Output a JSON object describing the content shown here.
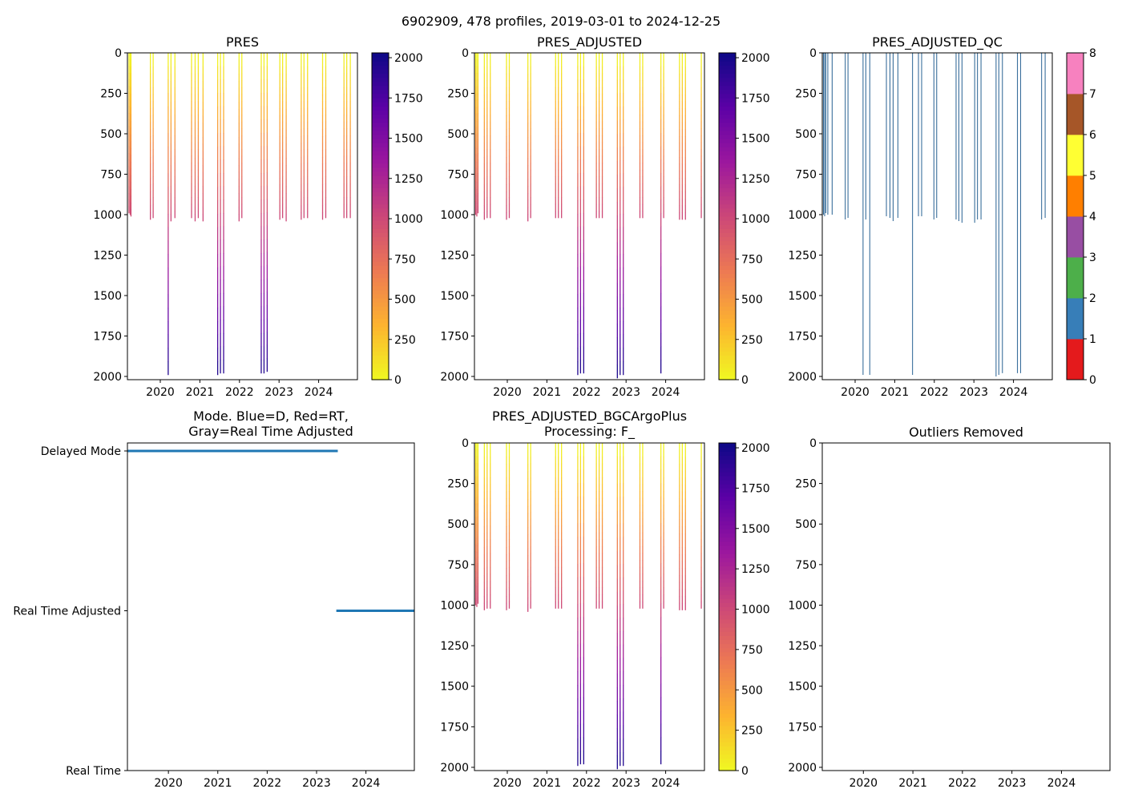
{
  "figure": {
    "suptitle": "6902909, 478 profiles, 2019-03-01 to 2024-12-25"
  },
  "colors": {
    "plasma": [
      "#f0f921",
      "#fdb42f",
      "#ed7953",
      "#cc4778",
      "#9c179e",
      "#5c01a6",
      "#0d0887"
    ],
    "mode_line": "#1f77b4",
    "qc_line": "#3a6f9c",
    "qc_palette": [
      "#e41a1c",
      "#377eb8",
      "#4daf4a",
      "#984ea3",
      "#ff7f00",
      "#ffff33",
      "#a65628",
      "#f781bf",
      "#999999"
    ]
  },
  "chart_data": [
    {
      "id": "pres",
      "type": "heatmap",
      "title": "PRES",
      "xlim": [
        2019.17,
        2024.98
      ],
      "ylim": [
        2020,
        0
      ],
      "xticks": [
        "2020",
        "2021",
        "2022",
        "2023",
        "2024"
      ],
      "yticks": [
        "0",
        "250",
        "500",
        "750",
        "1000",
        "1250",
        "1500",
        "1750",
        "2000"
      ],
      "colorbar": {
        "min": 0,
        "max": 2030,
        "ticks": [
          "0",
          "250",
          "500",
          "750",
          "1000",
          "1250",
          "1500",
          "1750",
          "2000"
        ]
      },
      "profiles": [
        {
          "t": 2019.21,
          "depth": 990
        },
        {
          "t": 2019.24,
          "depth": 1000
        },
        {
          "t": 2019.26,
          "depth": 1010
        },
        {
          "t": 2019.75,
          "depth": 1030
        },
        {
          "t": 2019.82,
          "depth": 1020
        },
        {
          "t": 2020.2,
          "depth": 1990
        },
        {
          "t": 2020.27,
          "depth": 1040
        },
        {
          "t": 2020.37,
          "depth": 1020
        },
        {
          "t": 2020.79,
          "depth": 1020
        },
        {
          "t": 2020.88,
          "depth": 1040
        },
        {
          "t": 2020.96,
          "depth": 1020
        },
        {
          "t": 2021.08,
          "depth": 1040
        },
        {
          "t": 2021.45,
          "depth": 1990
        },
        {
          "t": 2021.52,
          "depth": 1980
        },
        {
          "t": 2021.6,
          "depth": 1980
        },
        {
          "t": 2021.99,
          "depth": 1040
        },
        {
          "t": 2022.06,
          "depth": 1020
        },
        {
          "t": 2022.55,
          "depth": 1980
        },
        {
          "t": 2022.62,
          "depth": 1980
        },
        {
          "t": 2022.7,
          "depth": 1970
        },
        {
          "t": 2023.02,
          "depth": 1030
        },
        {
          "t": 2023.09,
          "depth": 1020
        },
        {
          "t": 2023.18,
          "depth": 1040
        },
        {
          "t": 2023.56,
          "depth": 1030
        },
        {
          "t": 2023.63,
          "depth": 1020
        },
        {
          "t": 2023.72,
          "depth": 1020
        },
        {
          "t": 2024.1,
          "depth": 1030
        },
        {
          "t": 2024.18,
          "depth": 1020
        },
        {
          "t": 2024.64,
          "depth": 1020
        },
        {
          "t": 2024.71,
          "depth": 1020
        },
        {
          "t": 2024.8,
          "depth": 1020
        }
      ]
    },
    {
      "id": "pres_adj",
      "type": "heatmap",
      "title": "PRES_ADJUSTED",
      "xlim": [
        2019.17,
        2024.98
      ],
      "ylim": [
        2020,
        0
      ],
      "xticks": [
        "2020",
        "2021",
        "2022",
        "2023",
        "2024"
      ],
      "yticks": [
        "0",
        "250",
        "500",
        "750",
        "1000",
        "1250",
        "1500",
        "1750",
        "2000"
      ],
      "colorbar": {
        "min": 0,
        "max": 2030,
        "ticks": [
          "0",
          "250",
          "500",
          "750",
          "1000",
          "1250",
          "1500",
          "1750",
          "2000"
        ]
      },
      "profiles": [
        {
          "t": 2019.2,
          "depth": 1000
        },
        {
          "t": 2019.23,
          "depth": 1010
        },
        {
          "t": 2019.26,
          "depth": 990
        },
        {
          "t": 2019.42,
          "depth": 1030
        },
        {
          "t": 2019.49,
          "depth": 1020
        },
        {
          "t": 2019.57,
          "depth": 1020
        },
        {
          "t": 2019.98,
          "depth": 1030
        },
        {
          "t": 2020.05,
          "depth": 1020
        },
        {
          "t": 2020.52,
          "depth": 1040
        },
        {
          "t": 2020.59,
          "depth": 1020
        },
        {
          "t": 2021.22,
          "depth": 1020
        },
        {
          "t": 2021.29,
          "depth": 1020
        },
        {
          "t": 2021.37,
          "depth": 1020
        },
        {
          "t": 2021.78,
          "depth": 1990
        },
        {
          "t": 2021.85,
          "depth": 1980
        },
        {
          "t": 2021.93,
          "depth": 1980
        },
        {
          "t": 2022.25,
          "depth": 1020
        },
        {
          "t": 2022.32,
          "depth": 1020
        },
        {
          "t": 2022.4,
          "depth": 1020
        },
        {
          "t": 2022.78,
          "depth": 2010
        },
        {
          "t": 2022.85,
          "depth": 1990
        },
        {
          "t": 2022.93,
          "depth": 1990
        },
        {
          "t": 2023.35,
          "depth": 1020
        },
        {
          "t": 2023.42,
          "depth": 1020
        },
        {
          "t": 2023.88,
          "depth": 1980
        },
        {
          "t": 2023.95,
          "depth": 1020
        },
        {
          "t": 2024.35,
          "depth": 1030
        },
        {
          "t": 2024.42,
          "depth": 1030
        },
        {
          "t": 2024.5,
          "depth": 1030
        },
        {
          "t": 2024.9,
          "depth": 1020
        }
      ]
    },
    {
      "id": "pres_adj_qc",
      "type": "heatmap",
      "title": "PRES_ADJUSTED_QC",
      "xlim": [
        2019.17,
        2024.98
      ],
      "ylim": [
        2020,
        0
      ],
      "xticks": [
        "2020",
        "2021",
        "2022",
        "2023",
        "2024"
      ],
      "yticks": [
        "0",
        "250",
        "500",
        "750",
        "1000",
        "1250",
        "1500",
        "1750",
        "2000"
      ],
      "colorbar": {
        "categories": [
          "0",
          "1",
          "2",
          "3",
          "4",
          "5",
          "6",
          "7",
          "8"
        ]
      },
      "profiles": [
        {
          "t": 2019.2,
          "depth": 1000
        },
        {
          "t": 2019.23,
          "depth": 1010
        },
        {
          "t": 2019.26,
          "depth": 990
        },
        {
          "t": 2019.31,
          "depth": 1000
        },
        {
          "t": 2019.42,
          "depth": 1000
        },
        {
          "t": 2019.75,
          "depth": 1030
        },
        {
          "t": 2019.82,
          "depth": 1020
        },
        {
          "t": 2020.2,
          "depth": 1990
        },
        {
          "t": 2020.27,
          "depth": 1030
        },
        {
          "t": 2020.37,
          "depth": 1990
        },
        {
          "t": 2020.79,
          "depth": 1010
        },
        {
          "t": 2020.88,
          "depth": 1020
        },
        {
          "t": 2020.96,
          "depth": 1040
        },
        {
          "t": 2021.08,
          "depth": 1020
        },
        {
          "t": 2021.45,
          "depth": 1990
        },
        {
          "t": 2021.6,
          "depth": 1010
        },
        {
          "t": 2021.68,
          "depth": 1010
        },
        {
          "t": 2021.99,
          "depth": 1030
        },
        {
          "t": 2022.06,
          "depth": 1020
        },
        {
          "t": 2022.55,
          "depth": 1030
        },
        {
          "t": 2022.62,
          "depth": 1040
        },
        {
          "t": 2022.7,
          "depth": 1050
        },
        {
          "t": 2023.02,
          "depth": 1050
        },
        {
          "t": 2023.09,
          "depth": 1030
        },
        {
          "t": 2023.18,
          "depth": 1030
        },
        {
          "t": 2023.56,
          "depth": 2000
        },
        {
          "t": 2023.63,
          "depth": 1990
        },
        {
          "t": 2023.72,
          "depth": 1980
        },
        {
          "t": 2024.1,
          "depth": 1980
        },
        {
          "t": 2024.18,
          "depth": 1980
        },
        {
          "t": 2024.71,
          "depth": 1030
        },
        {
          "t": 2024.8,
          "depth": 1020
        }
      ]
    },
    {
      "id": "mode",
      "type": "line",
      "title_line1": "Mode. Blue=D, Red=RT,",
      "title_line2": "Gray=Real Time Adjusted",
      "xlim": [
        2019.17,
        2024.98
      ],
      "xticks": [
        "2020",
        "2021",
        "2022",
        "2023",
        "2024"
      ],
      "ylabels": [
        "Delayed Mode",
        "Real Time Adjusted",
        "Real Time"
      ],
      "segments": [
        {
          "x0": 2019.17,
          "x1": 2023.43,
          "y": "Delayed Mode"
        },
        {
          "x0": 2023.4,
          "x1": 2024.98,
          "y": "Real Time Adjusted"
        }
      ]
    },
    {
      "id": "bgc",
      "type": "heatmap",
      "title_line1": "PRES_ADJUSTED_BGCArgoPlus",
      "title_line2": "Processing: F_",
      "xlim": [
        2019.17,
        2024.98
      ],
      "ylim": [
        2020,
        0
      ],
      "xticks": [
        "2020",
        "2021",
        "2022",
        "2023",
        "2024"
      ],
      "yticks": [
        "0",
        "250",
        "500",
        "750",
        "1000",
        "1250",
        "1500",
        "1750",
        "2000"
      ],
      "colorbar": {
        "min": 0,
        "max": 2030,
        "ticks": [
          "0",
          "250",
          "500",
          "750",
          "1000",
          "1250",
          "1500",
          "1750",
          "2000"
        ]
      },
      "profiles": [
        {
          "t": 2019.2,
          "depth": 1000
        },
        {
          "t": 2019.23,
          "depth": 1010
        },
        {
          "t": 2019.26,
          "depth": 990
        },
        {
          "t": 2019.42,
          "depth": 1030
        },
        {
          "t": 2019.49,
          "depth": 1020
        },
        {
          "t": 2019.57,
          "depth": 1020
        },
        {
          "t": 2019.98,
          "depth": 1030
        },
        {
          "t": 2020.05,
          "depth": 1020
        },
        {
          "t": 2020.52,
          "depth": 1040
        },
        {
          "t": 2020.59,
          "depth": 1020
        },
        {
          "t": 2021.22,
          "depth": 1020
        },
        {
          "t": 2021.29,
          "depth": 1020
        },
        {
          "t": 2021.37,
          "depth": 1020
        },
        {
          "t": 2021.78,
          "depth": 1990
        },
        {
          "t": 2021.85,
          "depth": 1980
        },
        {
          "t": 2021.93,
          "depth": 1980
        },
        {
          "t": 2022.25,
          "depth": 1020
        },
        {
          "t": 2022.32,
          "depth": 1020
        },
        {
          "t": 2022.4,
          "depth": 1020
        },
        {
          "t": 2022.78,
          "depth": 2010
        },
        {
          "t": 2022.85,
          "depth": 1990
        },
        {
          "t": 2022.93,
          "depth": 1990
        },
        {
          "t": 2023.35,
          "depth": 1020
        },
        {
          "t": 2023.42,
          "depth": 1020
        },
        {
          "t": 2023.88,
          "depth": 1980
        },
        {
          "t": 2023.95,
          "depth": 1020
        },
        {
          "t": 2024.35,
          "depth": 1030
        },
        {
          "t": 2024.42,
          "depth": 1030
        },
        {
          "t": 2024.5,
          "depth": 1030
        },
        {
          "t": 2024.9,
          "depth": 1020
        }
      ]
    },
    {
      "id": "outliers",
      "type": "heatmap",
      "title": "Outliers Removed",
      "xlim": [
        2019.17,
        2024.98
      ],
      "ylim": [
        2020,
        0
      ],
      "xticks": [
        "2020",
        "2021",
        "2022",
        "2023",
        "2024"
      ],
      "yticks": [
        "0",
        "250",
        "500",
        "750",
        "1000",
        "1250",
        "1500",
        "1750",
        "2000"
      ],
      "profiles": []
    }
  ]
}
